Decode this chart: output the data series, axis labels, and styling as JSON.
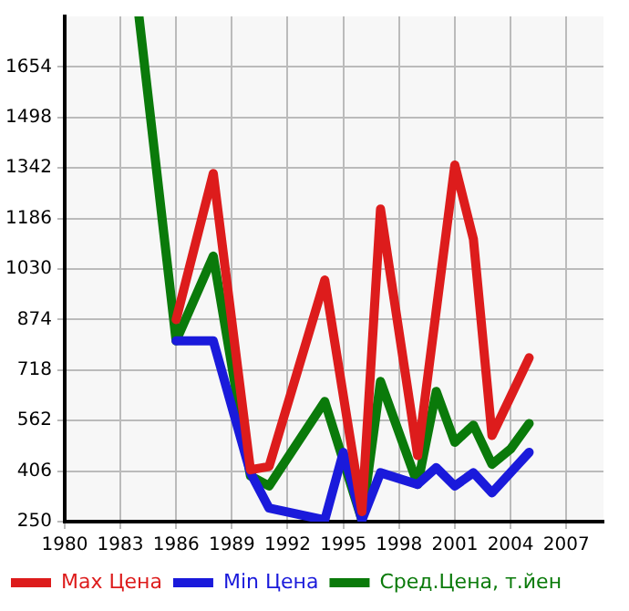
{
  "chart_data": {
    "type": "line",
    "xlim": [
      1980,
      2009
    ],
    "xticks": [
      1980,
      1983,
      1986,
      1989,
      1992,
      1995,
      1998,
      2001,
      2004,
      2007
    ],
    "ylim": [
      250,
      1810
    ],
    "yticks": [
      250,
      406,
      562,
      718,
      874,
      1030,
      1186,
      1342,
      1498,
      1654
    ],
    "grid": true,
    "legend": "bottom",
    "marker": "none",
    "line_style": "solid",
    "series": [
      {
        "name": "Max Цена",
        "color": "#dd1c1c",
        "x": [
          1986,
          1988,
          1990,
          1991,
          1994,
          1996,
          1997,
          1999,
          2001,
          2002,
          2003,
          2005
        ],
        "values": [
          874,
          1325,
          410,
          420,
          996,
          281,
          1215,
          454,
          1351,
          1122,
          516,
          756
        ]
      },
      {
        "name": "Min Цена",
        "color": "#1a1adb",
        "x": [
          1986,
          1988,
          1990,
          1991,
          1994,
          1995,
          1996,
          1997,
          1999,
          2000,
          2001,
          2002,
          2003,
          2005
        ],
        "values": [
          808,
          808,
          401,
          292,
          255,
          464,
          255,
          401,
          365,
          417,
          360,
          401,
          339,
          464
        ]
      },
      {
        "name": "Сред.Цена, т.йен",
        "color": "#0a7a0a",
        "x": [
          1984,
          1986,
          1988,
          1990,
          1991,
          1994,
          1996,
          1997,
          1999,
          2000,
          2001,
          2002,
          2003,
          2004,
          2005
        ],
        "values": [
          1810,
          808,
          1070,
          391,
          360,
          621,
          255,
          683,
          365,
          652,
          495,
          548,
          427,
          474,
          553
        ]
      }
    ]
  }
}
